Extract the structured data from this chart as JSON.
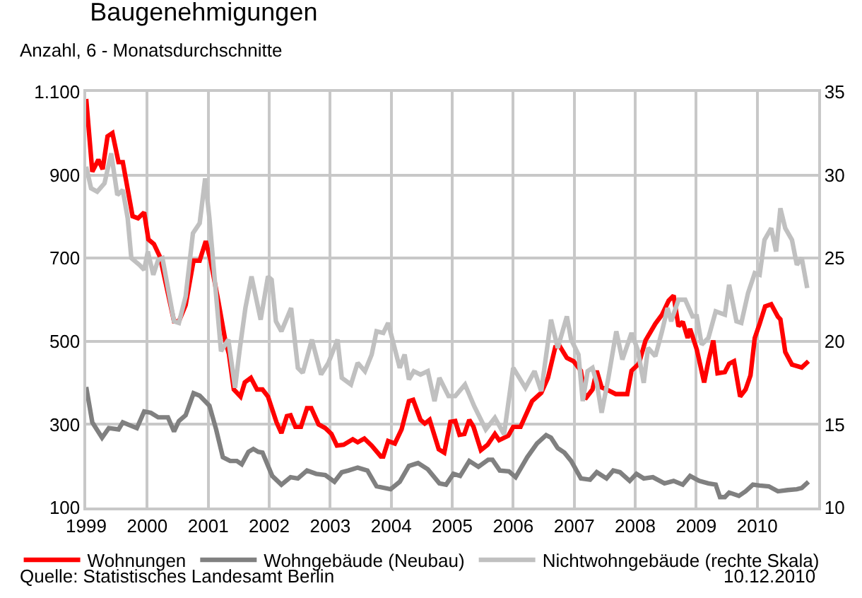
{
  "chart_data": {
    "type": "line",
    "title": "Baugenehmigungen",
    "subtitle": "Anzahl, 6 - Monatsdurchschnitte",
    "xlim": [
      1999,
      2011
    ],
    "xticks": [
      1999,
      2000,
      2001,
      2002,
      2003,
      2004,
      2005,
      2006,
      2007,
      2008,
      2009,
      2010
    ],
    "ylim": [
      100,
      1100
    ],
    "yticks": [
      100,
      300,
      500,
      700,
      900,
      {
        "value": 1100,
        "label": "1.100"
      }
    ],
    "y2lim": [
      10,
      35
    ],
    "y2ticks": [
      10,
      15,
      20,
      25,
      30,
      35
    ],
    "grid": true,
    "legend": "bottom",
    "line_style": "solid",
    "marker": "none",
    "annotations": [
      "Quelle: Statistisches Landesamt Berlin",
      "10.12.2010"
    ],
    "series": [
      {
        "name": "Wohnungen",
        "color": "#ff0000",
        "x": [
          1999.0,
          1999.1,
          1999.2,
          1999.27,
          1999.35,
          1999.43,
          1999.53,
          1999.6,
          1999.76,
          1999.85,
          1999.95,
          2000.02,
          2000.11,
          2000.21,
          2000.44,
          2000.52,
          2000.63,
          2000.76,
          2000.86,
          2000.96,
          2001.04,
          2001.17,
          2001.28,
          2001.34,
          2001.42,
          2001.53,
          2001.6,
          2001.7,
          2001.8,
          2001.89,
          2001.98,
          2002.12,
          2002.2,
          2002.29,
          2002.35,
          2002.43,
          2002.52,
          2002.62,
          2002.69,
          2002.81,
          2002.92,
          2003.02,
          2003.11,
          2003.22,
          2003.37,
          2003.45,
          2003.56,
          2003.68,
          2003.83,
          2003.87,
          2003.95,
          2004.06,
          2004.17,
          2004.29,
          2004.36,
          2004.48,
          2004.55,
          2004.63,
          2004.78,
          2004.87,
          2004.97,
          2005.05,
          2005.12,
          2005.2,
          2005.28,
          2005.35,
          2005.47,
          2005.58,
          2005.7,
          2005.77,
          2005.92,
          2006.0,
          2006.12,
          2006.31,
          2006.46,
          2006.57,
          2006.69,
          2006.76,
          2006.88,
          2006.99,
          2007.11,
          2007.18,
          2007.3,
          2007.37,
          2007.45,
          2007.53,
          2007.68,
          2007.87,
          2007.94,
          2008.06,
          2008.17,
          2008.33,
          2008.44,
          2008.55,
          2008.63,
          2008.71,
          2008.78,
          2008.86,
          2008.9,
          2009.01,
          2009.13,
          2009.2,
          2009.28,
          2009.35,
          2009.47,
          2009.54,
          2009.62,
          2009.72,
          2009.81,
          2009.89,
          2009.96,
          2010.04,
          2010.13,
          2010.23,
          2010.34,
          2010.38,
          2010.46,
          2010.57,
          2010.73,
          2010.84
        ],
        "values": [
          1083,
          908,
          937,
          914,
          993,
          1001,
          931,
          931,
          801,
          796,
          810,
          745,
          734,
          703,
          548,
          548,
          587,
          694,
          694,
          741,
          694,
          593,
          502,
          469,
          384,
          367,
          401,
          412,
          384,
          384,
          367,
          305,
          279,
          320,
          322,
          294,
          294,
          339,
          339,
          300,
          291,
          277,
          249,
          251,
          264,
          257,
          266,
          249,
          223,
          223,
          260,
          254,
          288,
          356,
          359,
          311,
          302,
          311,
          240,
          232,
          306,
          308,
          275,
          277,
          311,
          294,
          238,
          251,
          277,
          262,
          273,
          294,
          294,
          356,
          376,
          412,
          486,
          489,
          460,
          452,
          429,
          361,
          384,
          429,
          389,
          384,
          373,
          373,
          429,
          446,
          502,
          542,
          564,
          598,
          610,
          536,
          547,
          508,
          530,
          480,
          401,
          452,
          502,
          423,
          426,
          446,
          452,
          367,
          384,
          418,
          508,
          542,
          584,
          589,
          559,
          553,
          474,
          444,
          437,
          452
        ]
      },
      {
        "name": "Wohngebäude (Neubau)",
        "color": "#808080",
        "x": [
          1999.0,
          1999.1,
          1999.26,
          1999.37,
          1999.53,
          1999.6,
          1999.83,
          1999.95,
          2000.06,
          2000.18,
          2000.34,
          2000.44,
          2000.52,
          2000.63,
          2000.76,
          2000.86,
          2001.02,
          2001.13,
          2001.24,
          2001.36,
          2001.47,
          2001.55,
          2001.66,
          2001.74,
          2001.82,
          2001.89,
          2002.05,
          2002.2,
          2002.35,
          2002.47,
          2002.62,
          2002.77,
          2002.92,
          2003.07,
          2003.19,
          2003.3,
          2003.45,
          2003.61,
          2003.76,
          2003.99,
          2004.14,
          2004.29,
          2004.44,
          2004.6,
          2004.79,
          2004.9,
          2005.02,
          2005.13,
          2005.28,
          2005.43,
          2005.59,
          2005.66,
          2005.78,
          2005.93,
          2006.04,
          2006.23,
          2006.39,
          2006.54,
          2006.62,
          2006.73,
          2006.84,
          2006.95,
          2007.11,
          2007.26,
          2007.37,
          2007.53,
          2007.64,
          2007.75,
          2007.91,
          2008.02,
          2008.14,
          2008.29,
          2008.48,
          2008.63,
          2008.78,
          2008.9,
          2009.05,
          2009.2,
          2009.32,
          2009.39,
          2009.47,
          2009.54,
          2009.7,
          2009.81,
          2009.93,
          2010.04,
          2010.19,
          2010.34,
          2010.5,
          2010.65,
          2010.73,
          2010.84
        ],
        "values": [
          390,
          305,
          268,
          291,
          288,
          305,
          291,
          331,
          328,
          317,
          317,
          283,
          308,
          322,
          375,
          369,
          345,
          288,
          221,
          212,
          212,
          204,
          234,
          241,
          234,
          232,
          176,
          155,
          173,
          170,
          189,
          181,
          178,
          162,
          185,
          189,
          196,
          189,
          151,
          144,
          162,
          200,
          207,
          192,
          158,
          155,
          181,
          176,
          212,
          198,
          215,
          215,
          189,
          187,
          173,
          221,
          254,
          274,
          268,
          243,
          232,
          212,
          170,
          167,
          185,
          170,
          189,
          185,
          164,
          181,
          170,
          173,
          158,
          164,
          155,
          176,
          164,
          158,
          155,
          125,
          125,
          136,
          128,
          139,
          155,
          153,
          151,
          139,
          142,
          144,
          147,
          162
        ]
      },
      {
        "name": "Nichtwohngebäude (rechte Skala)",
        "color": "#c0c0c0",
        "axis": "y2",
        "x": [
          1999.0,
          1999.08,
          1999.18,
          1999.3,
          1999.41,
          1999.51,
          1999.6,
          1999.68,
          1999.74,
          1999.87,
          1999.95,
          2000.01,
          2000.1,
          2000.18,
          2000.25,
          2000.44,
          2000.52,
          2000.63,
          2000.75,
          2000.86,
          2000.95,
          2001.02,
          2001.1,
          2001.21,
          2001.33,
          2001.44,
          2001.52,
          2001.61,
          2001.71,
          2001.86,
          2001.98,
          2002.04,
          2002.11,
          2002.2,
          2002.36,
          2002.47,
          2002.55,
          2002.7,
          2002.85,
          2002.97,
          2003.12,
          2003.19,
          2003.34,
          2003.45,
          2003.57,
          2003.68,
          2003.76,
          2003.87,
          2003.95,
          2004.14,
          2004.22,
          2004.29,
          2004.37,
          2004.48,
          2004.6,
          2004.71,
          2004.79,
          2004.94,
          2005.05,
          2005.21,
          2005.36,
          2005.55,
          2005.7,
          2005.85,
          2006.0,
          2006.2,
          2006.35,
          2006.46,
          2006.62,
          2006.73,
          2006.88,
          2006.95,
          2007.07,
          2007.14,
          2007.22,
          2007.3,
          2007.37,
          2007.45,
          2007.56,
          2007.69,
          2007.79,
          2007.94,
          2008.04,
          2008.14,
          2008.21,
          2008.33,
          2008.44,
          2008.53,
          2008.59,
          2008.71,
          2008.82,
          2008.94,
          2009.01,
          2009.09,
          2009.2,
          2009.32,
          2009.47,
          2009.54,
          2009.66,
          2009.74,
          2009.85,
          2009.96,
          2010.04,
          2010.12,
          2010.23,
          2010.31,
          2010.38,
          2010.46,
          2010.57,
          2010.65,
          2010.73,
          2010.82
        ],
        "values": [
          30.5,
          29.2,
          29.0,
          29.5,
          31.3,
          28.8,
          29.1,
          27.4,
          25.0,
          24.6,
          24.3,
          25.4,
          24.0,
          24.9,
          25.0,
          21.2,
          21.1,
          22.7,
          26.5,
          27.1,
          29.8,
          27.4,
          24.0,
          19.4,
          20.1,
          17.2,
          19.6,
          22.0,
          23.9,
          21.3,
          23.9,
          23.7,
          21.2,
          20.6,
          22.0,
          18.4,
          18.1,
          20.1,
          18.0,
          18.7,
          20.1,
          17.8,
          17.4,
          18.7,
          18.2,
          19.2,
          20.6,
          20.5,
          21.1,
          18.4,
          19.2,
          17.7,
          18.2,
          18.0,
          18.2,
          16.4,
          17.8,
          16.7,
          16.7,
          17.4,
          16.1,
          14.7,
          15.4,
          14.4,
          18.4,
          17.2,
          18.2,
          17.0,
          21.3,
          19.6,
          21.5,
          20.1,
          19.2,
          16.4,
          18.2,
          18.4,
          17.5,
          15.7,
          17.8,
          20.6,
          18.9,
          20.5,
          19.5,
          17.5,
          19.6,
          19.1,
          20.6,
          22.0,
          21.2,
          22.5,
          22.5,
          21.5,
          21.5,
          19.8,
          20.2,
          21.8,
          21.6,
          23.4,
          21.2,
          21.1,
          22.9,
          24.1,
          24.0,
          26.1,
          26.8,
          25.4,
          28.0,
          26.8,
          26.1,
          24.6,
          25.0,
          23.2
        ]
      }
    ]
  }
}
